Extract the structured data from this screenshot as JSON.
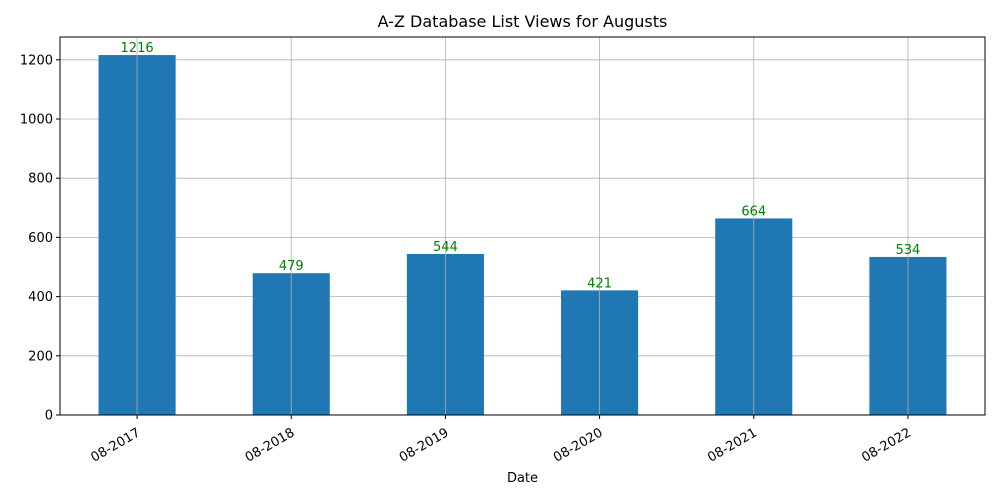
{
  "colors": {
    "bar": "#1f77b4",
    "data_label": "#008000",
    "grid": "#b0b0b0",
    "axis": "#000000"
  },
  "chart_data": {
    "type": "bar",
    "title": "A-Z Database List Views for Augusts",
    "xlabel": "Date",
    "ylabel": "",
    "categories": [
      "08-2017",
      "08-2018",
      "08-2019",
      "08-2020",
      "08-2021",
      "08-2022"
    ],
    "values": [
      1216,
      479,
      544,
      421,
      664,
      534
    ],
    "data_labels": [
      "1216",
      "479",
      "544",
      "421",
      "664",
      "534"
    ],
    "ylim": [
      0,
      1277
    ],
    "yticks": [
      0,
      200,
      400,
      600,
      800,
      1000,
      1200
    ],
    "ytick_labels": [
      "0",
      "200",
      "400",
      "600",
      "800",
      "1000",
      "1200"
    ],
    "grid": true,
    "xtick_rotation": 30
  }
}
